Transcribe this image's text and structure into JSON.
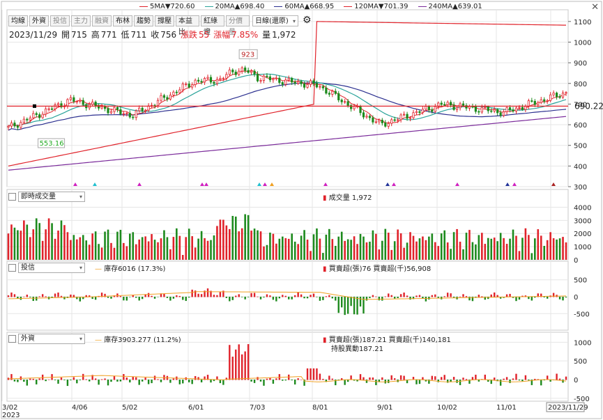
{
  "legend": [
    {
      "label": "5MA",
      "arrow": "▼",
      "value": "720.60",
      "color": "#e0222a"
    },
    {
      "label": "20MA",
      "arrow": "▲",
      "value": "698.40",
      "color": "#2aa39a"
    },
    {
      "label": "60MA",
      "arrow": "▲",
      "value": "668.95",
      "color": "#2b2f8f"
    },
    {
      "label": "120MA",
      "arrow": "▼",
      "value": "701.39",
      "color": "#e0222a"
    },
    {
      "label": "240MA",
      "arrow": "▲",
      "value": "639.01",
      "color": "#7a2a9a"
    }
  ],
  "toolbar": {
    "buttons": [
      "均線",
      "外資",
      "投信",
      "主力",
      "融資",
      "布林",
      "趨勢",
      "撐壓",
      "本益比",
      "紅綠燈",
      "分價量"
    ],
    "period_select": "日線(還原)"
  },
  "quote": {
    "date": "2023/11/29",
    "open_label": "開",
    "open": "715",
    "high_label": "高",
    "high": "771",
    "low_label": "低",
    "low": "711",
    "close_label": "收",
    "close": "756",
    "change_label": "漲跌",
    "change": "55",
    "pct_label": "漲幅",
    "pct": "7.85%",
    "vol_label": "量",
    "vol": "1,972"
  },
  "price_axis": {
    "ticks": [
      "1100",
      "1000",
      "900",
      "800",
      "700",
      "600",
      "500",
      "400",
      "300"
    ],
    "current": "690.22"
  },
  "annotations": {
    "high": "923",
    "low": "553.16"
  },
  "x_axis": {
    "labels": [
      "3/02",
      "4/06",
      "5/02",
      "6/01",
      "7/03",
      "8/01",
      "9/01",
      "10/02",
      "11/01",
      "2023/11/29"
    ],
    "year": "2023"
  },
  "volume_panel": {
    "select": "即時成交量",
    "label": "成交量",
    "value": "1,972",
    "ticks": [
      "4000",
      "3000",
      "2000",
      "1000",
      "0"
    ]
  },
  "trust_panel": {
    "select": "投信",
    "inventory": "庫存6016 (17.3%)",
    "net": "買賣超(張)76 買賣超(千)56,908",
    "ticks": [
      "500",
      "0",
      "-500"
    ]
  },
  "foreign_panel": {
    "select": "外資",
    "inventory": "庫存3903.277 (11.2%)",
    "net": "買賣超(張)187.21 買賣超(千)140,181",
    "net2": "持股異動187.21",
    "ticks": [
      "1000",
      "500",
      "0",
      "-500"
    ]
  },
  "colors": {
    "up": "#e0222a",
    "down": "#1d8a1d",
    "grid": "#e6e6e6",
    "ma5": "#e0222a",
    "ma20": "#2aa39a",
    "ma60": "#2b2f8f",
    "ma120": "#e0222a",
    "ma240": "#7a2a9a",
    "inventory": "#f0a020"
  },
  "chart_data": {
    "type": "line",
    "title": "",
    "dates": [
      "3/02",
      "4/06",
      "5/02",
      "6/01",
      "7/03",
      "8/01",
      "9/01",
      "10/02",
      "11/01",
      "11/29"
    ],
    "close_approx": [
      585,
      720,
      645,
      810,
      830,
      790,
      600,
      700,
      660,
      756
    ],
    "ylim": [
      300,
      1150
    ],
    "ma_latest": {
      "5MA": 720.6,
      "20MA": 698.4,
      "60MA": 668.95,
      "120MA": 701.39,
      "240MA": 639.01
    }
  }
}
